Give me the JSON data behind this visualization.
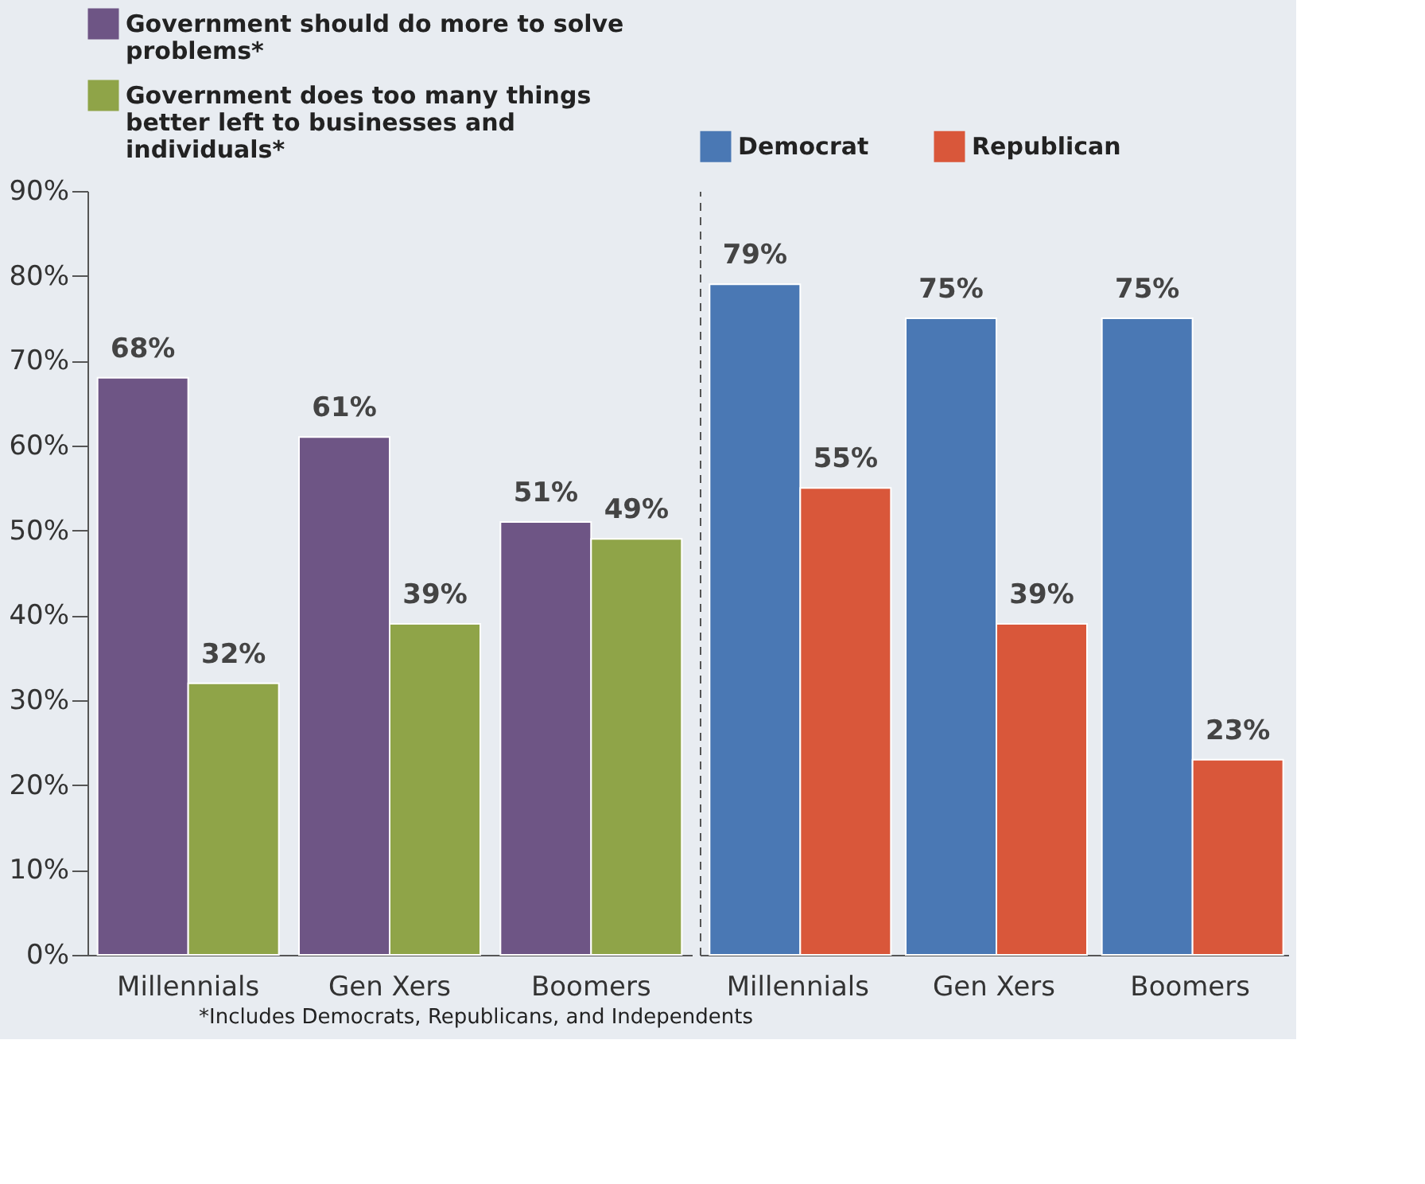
{
  "chart_data": [
    {
      "type": "bar",
      "categories": [
        "Millennials",
        "Gen Xers",
        "Boomers"
      ],
      "series": [
        {
          "name": "Government should do more to solve problems*",
          "color": "#6e5585",
          "values": [
            68,
            61,
            51
          ],
          "value_labels": [
            "68%",
            "61%",
            "51%"
          ]
        },
        {
          "name": "Government does too many things better left to businesses and individuals*",
          "color": "#8fa448",
          "values": [
            32,
            39,
            49
          ],
          "value_labels": [
            "32%",
            "39%",
            "49%"
          ]
        }
      ],
      "ylim": [
        0,
        90
      ],
      "yticks": [
        {
          "value": 0,
          "label": "0%"
        },
        {
          "value": 10,
          "label": "10%"
        },
        {
          "value": 20,
          "label": "20%"
        },
        {
          "value": 30,
          "label": "30%"
        },
        {
          "value": 40,
          "label": "40%"
        },
        {
          "value": 50,
          "label": "50%"
        },
        {
          "value": 60,
          "label": "60%"
        },
        {
          "value": 70,
          "label": "70%"
        },
        {
          "value": 80,
          "label": "80%"
        },
        {
          "value": 90,
          "label": "90%"
        }
      ],
      "legend": "top",
      "grid": false,
      "annotations": [
        "*Includes Democrats, Republicans, and Independents"
      ]
    },
    {
      "type": "bar",
      "categories": [
        "Millennials",
        "Gen Xers",
        "Boomers"
      ],
      "series": [
        {
          "name": "Democrat",
          "color": "#4a78b4",
          "values": [
            79,
            75,
            75
          ],
          "value_labels": [
            "79%",
            "75%",
            "75%"
          ]
        },
        {
          "name": "Republican",
          "color": "#d9573a",
          "values": [
            55,
            39,
            23
          ],
          "value_labels": [
            "55%",
            "39%",
            "23%"
          ]
        }
      ],
      "ylim": [
        0,
        90
      ],
      "tick_labels": "x",
      "legend": "top",
      "grid": false
    }
  ]
}
